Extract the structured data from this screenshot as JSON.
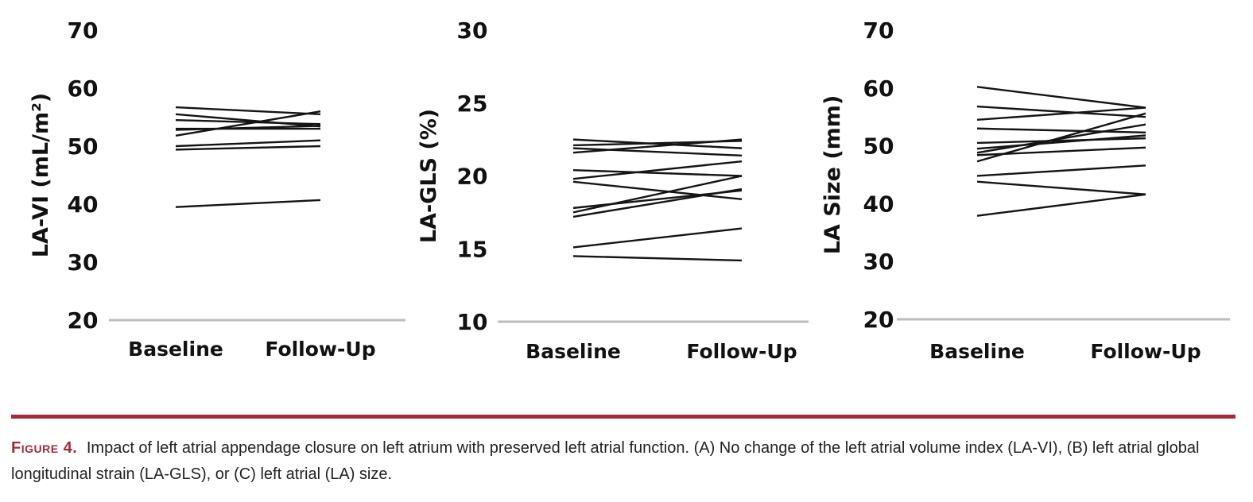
{
  "chart_data": [
    {
      "type": "line",
      "panel": "A",
      "title": "",
      "xlabel": "",
      "ylabel": "LA-VI (mL/m²)",
      "categories": [
        "Baseline",
        "Follow-Up"
      ],
      "ylim": [
        20,
        70
      ],
      "yticks": [
        20,
        30,
        40,
        50,
        60,
        70
      ],
      "grid": false,
      "series": [
        {
          "values": [
            56.7,
            55.5
          ]
        },
        {
          "values": [
            55.5,
            53.4
          ]
        },
        {
          "values": [
            54.5,
            53.8
          ]
        },
        {
          "values": [
            53.0,
            53.0
          ]
        },
        {
          "values": [
            52.8,
            53.5
          ]
        },
        {
          "values": [
            51.8,
            56.0
          ]
        },
        {
          "values": [
            50.0,
            51.0
          ]
        },
        {
          "values": [
            49.4,
            50.0
          ]
        },
        {
          "values": [
            39.5,
            40.7
          ]
        }
      ]
    },
    {
      "type": "line",
      "panel": "B",
      "title": "",
      "xlabel": "",
      "ylabel": "LA-GLS (%)",
      "categories": [
        "Baseline",
        "Follow-Up"
      ],
      "ylim": [
        10,
        30
      ],
      "yticks": [
        10,
        15,
        20,
        25,
        30
      ],
      "grid": false,
      "series": [
        {
          "values": [
            22.5,
            21.9
          ]
        },
        {
          "values": [
            22.1,
            22.4
          ]
        },
        {
          "values": [
            21.9,
            21.4
          ]
        },
        {
          "values": [
            21.6,
            22.5
          ]
        },
        {
          "values": [
            20.4,
            20.0
          ]
        },
        {
          "values": [
            19.8,
            21.0
          ]
        },
        {
          "values": [
            19.6,
            18.4
          ]
        },
        {
          "values": [
            17.8,
            19.0
          ]
        },
        {
          "values": [
            17.5,
            20.0
          ]
        },
        {
          "values": [
            17.2,
            19.1
          ]
        },
        {
          "values": [
            15.1,
            16.4
          ]
        },
        {
          "values": [
            14.5,
            14.2
          ]
        }
      ]
    },
    {
      "type": "line",
      "panel": "C",
      "title": "",
      "xlabel": "",
      "ylabel": "LA Size (mm)",
      "categories": [
        "Baseline",
        "Follow-Up"
      ],
      "ylim": [
        20,
        70
      ],
      "yticks": [
        20,
        30,
        40,
        50,
        60,
        70
      ],
      "grid": false,
      "series": [
        {
          "values": [
            60.2,
            56.6
          ]
        },
        {
          "values": [
            56.8,
            55.0
          ]
        },
        {
          "values": [
            54.5,
            56.6
          ]
        },
        {
          "values": [
            53.0,
            52.3
          ]
        },
        {
          "values": [
            50.5,
            51.3
          ]
        },
        {
          "values": [
            49.5,
            51.8
          ]
        },
        {
          "values": [
            48.8,
            53.7
          ]
        },
        {
          "values": [
            48.4,
            49.7
          ]
        },
        {
          "values": [
            47.3,
            55.6
          ]
        },
        {
          "values": [
            44.8,
            46.6
          ]
        },
        {
          "values": [
            43.8,
            41.6
          ]
        },
        {
          "values": [
            37.9,
            41.6
          ]
        }
      ]
    }
  ],
  "caption": {
    "label": "Figure 4.",
    "text": "Impact of left atrial appendage closure on left atrium with preserved left atrial function. (A) No change of the left atrial volume index (LA-VI), (B) left atrial global longitudinal strain (LA-GLS), or (C) left atrial (LA) size."
  }
}
